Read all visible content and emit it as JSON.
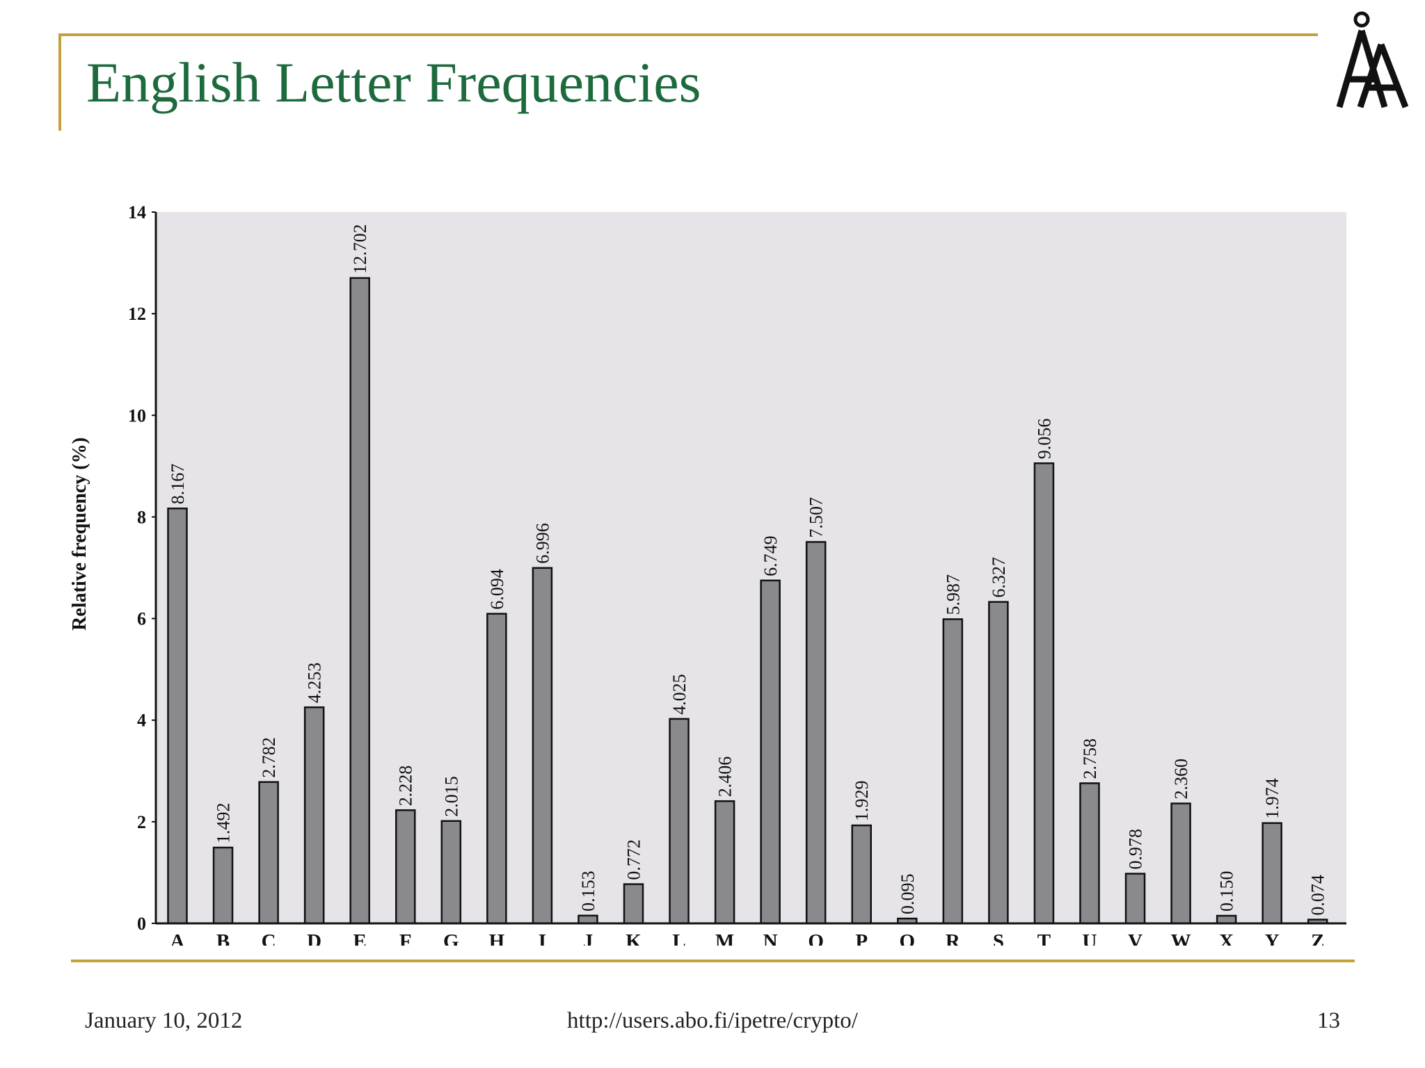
{
  "slide": {
    "title": "English Letter Frequencies",
    "footer": {
      "date": "January 10, 2012",
      "url": "http://users.abo.fi/ipetre/crypto/",
      "page_number": "13"
    },
    "logo": {
      "icon": "abo-akademi-logo-icon"
    },
    "colors": {
      "title": "#1d6a3d",
      "accent_rule": "#c4a23a",
      "plot_background": "#e6e4e8",
      "bar_fill": "#8a898d"
    }
  },
  "chart_data": {
    "type": "bar",
    "title": "",
    "xlabel": "",
    "ylabel": "Relative frequency (%)",
    "ylim": [
      0,
      14
    ],
    "yticks": [
      0,
      2,
      4,
      6,
      8,
      10,
      12,
      14
    ],
    "grid": false,
    "legend": "none",
    "categories": [
      "A",
      "B",
      "C",
      "D",
      "E",
      "F",
      "G",
      "H",
      "I",
      "J",
      "K",
      "L",
      "M",
      "N",
      "O",
      "P",
      "Q",
      "R",
      "S",
      "T",
      "U",
      "V",
      "W",
      "X",
      "Y",
      "Z"
    ],
    "values": [
      8.167,
      1.492,
      2.782,
      4.253,
      12.702,
      2.228,
      2.015,
      6.094,
      6.996,
      0.153,
      0.772,
      4.025,
      2.406,
      6.749,
      7.507,
      1.929,
      0.095,
      5.987,
      6.327,
      9.056,
      2.758,
      0.978,
      2.36,
      0.15,
      1.974,
      0.074
    ],
    "data_labels": [
      "8.167",
      "1.492",
      "2.782",
      "4.253",
      "12.702",
      "2.228",
      "2.015",
      "6.094",
      "6.996",
      "0.153",
      "0.772",
      "4.025",
      "2.406",
      "6.749",
      "7.507",
      "1.929",
      "0.095",
      "5.987",
      "6.327",
      "9.056",
      "2.758",
      "0.978",
      "2.360",
      "0.150",
      "1.974",
      "0.074"
    ]
  }
}
